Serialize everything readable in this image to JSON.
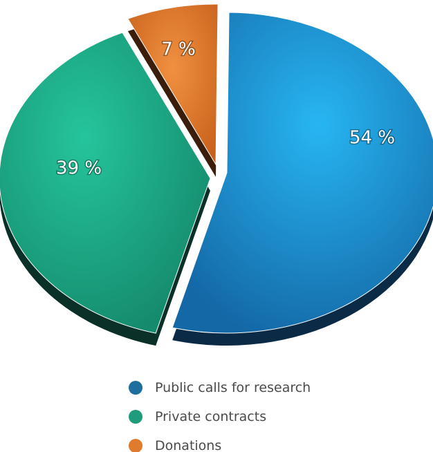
{
  "chart_data": {
    "type": "pie",
    "title": "",
    "categories": [
      "Public calls for research",
      "Private contracts",
      "Donations"
    ],
    "values": [
      54,
      39,
      7
    ],
    "labels": [
      "54 %",
      "39 %",
      "7 %"
    ],
    "colors": [
      "#1f86c6",
      "#1fa887",
      "#e07a2c"
    ],
    "depth_colors": [
      "#0b2a45",
      "#0b3027",
      "#3a1e0b"
    ],
    "legend_position": "bottom"
  },
  "legend": {
    "items": [
      {
        "label": "Public calls for research",
        "color": "#1f6f9e"
      },
      {
        "label": "Private contracts",
        "color": "#1f9c7c"
      },
      {
        "label": "Donations",
        "color": "#e07a2c"
      }
    ]
  }
}
